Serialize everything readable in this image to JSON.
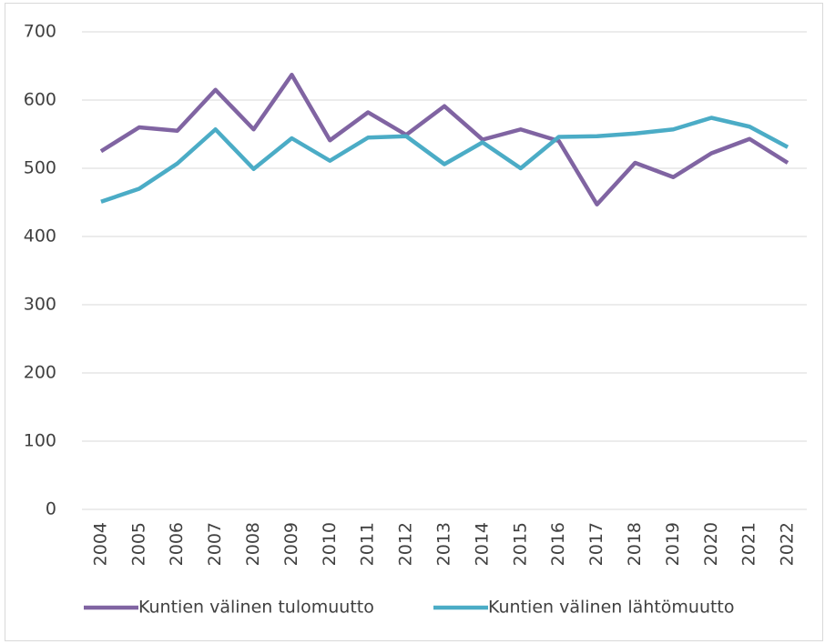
{
  "chart_data": {
    "type": "line",
    "categories": [
      "2004",
      "2005",
      "2006",
      "2007",
      "2008",
      "2009",
      "2010",
      "2011",
      "2012",
      "2013",
      "2014",
      "2015",
      "2016",
      "2017",
      "2018",
      "2019",
      "2020",
      "2021",
      "2022"
    ],
    "series": [
      {
        "name": "Kuntien välinen tulomuutto",
        "color": "#8064a2",
        "values": [
          525,
          560,
          555,
          615,
          557,
          637,
          541,
          582,
          549,
          591,
          542,
          557,
          540,
          447,
          508,
          487,
          522,
          543,
          508
        ]
      },
      {
        "name": "Kuntien välinen lähtömuutto",
        "color": "#4bacc6",
        "values": [
          451,
          470,
          507,
          557,
          499,
          544,
          511,
          545,
          547,
          506,
          538,
          500,
          546,
          547,
          551,
          557,
          574,
          561,
          531
        ]
      }
    ],
    "ylim": [
      0,
      700
    ],
    "yticks": [
      0,
      100,
      200,
      300,
      400,
      500,
      600,
      700
    ],
    "grid": true,
    "legend": "bottom"
  }
}
